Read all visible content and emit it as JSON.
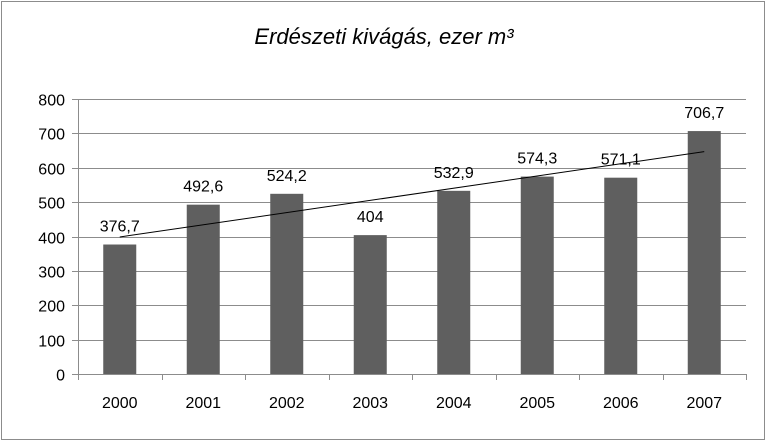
{
  "chart_data": {
    "type": "bar",
    "title": "Erdészeti kivágás, ezer m³",
    "xlabel": "",
    "ylabel": "",
    "categories": [
      "2000",
      "2001",
      "2002",
      "2003",
      "2004",
      "2005",
      "2006",
      "2007"
    ],
    "values": [
      376.7,
      492.6,
      524.2,
      404,
      532.9,
      574.3,
      571.1,
      706.7
    ],
    "data_labels": [
      "376,7",
      "492,6",
      "524,2",
      "404",
      "532,9",
      "574,3",
      "571,1",
      "706,7"
    ],
    "ylim": [
      0,
      800
    ],
    "yticks": [
      0,
      100,
      200,
      300,
      400,
      500,
      600,
      700,
      800
    ],
    "ytick_labels": [
      "0",
      "100",
      "200",
      "300",
      "400",
      "500",
      "600",
      "700",
      "800"
    ],
    "grid": true,
    "legend": "none",
    "trendline": {
      "type": "linear"
    },
    "colors": {
      "bar": "#5f5f5f",
      "grid": "#8c8c8c",
      "trendline": "#000000",
      "axis": "#8c8c8c"
    }
  }
}
